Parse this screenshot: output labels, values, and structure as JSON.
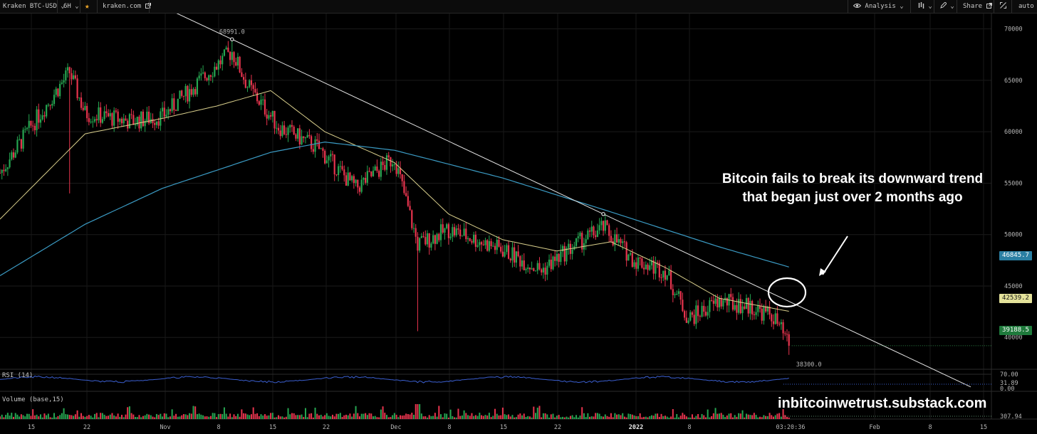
{
  "toolbar": {
    "symbol": "Kraken BTC-USD",
    "symbol_caret": "⌄",
    "interval": "6H",
    "interval_caret": "⌄",
    "source": "kraken.com",
    "analysis": "Analysis",
    "share": "Share",
    "scale": "auto",
    "icons": [
      "star-icon",
      "external-link-icon",
      "eye-icon",
      "bar-style-icon",
      "pencil-icon",
      "expand-icon"
    ]
  },
  "price_axis": [
    "70000",
    "65000",
    "60000",
    "55000",
    "50000",
    "45000",
    "40000"
  ],
  "price_badges": {
    "ma200": "46845.7",
    "ma50": "42539.2",
    "last": "39188.5"
  },
  "labels": {
    "high": "68991.0",
    "low": "38300.0",
    "countdown": "03:20:36"
  },
  "rsi": {
    "title": "RSI (14)",
    "levels": [
      "70.00",
      "31.89",
      "0.00"
    ]
  },
  "volume": {
    "title": "Volume (base,15)",
    "last": "307.94"
  },
  "time_axis": [
    {
      "t": "15"
    },
    {
      "t": "22"
    },
    {
      "t": "Nov"
    },
    {
      "t": "8"
    },
    {
      "t": "15"
    },
    {
      "t": "22"
    },
    {
      "t": "Dec"
    },
    {
      "t": "8"
    },
    {
      "t": "15"
    },
    {
      "t": "22"
    },
    {
      "t": "2022",
      "bold": true
    },
    {
      "t": "8"
    },
    {
      "t": "Feb"
    },
    {
      "t": "8"
    },
    {
      "t": "15"
    }
  ],
  "annotation": "Bitcoin fails to break its downward trend that began just over 2 months ago",
  "watermark": "inbitcoinwetrust.substack.com",
  "colors": {
    "up": "#26a651",
    "down": "#e8344e",
    "ma50": "#d9cf8c",
    "ma200": "#3b9bc4",
    "trendline": "#e6e6e6",
    "rsi": "#3b5fd0"
  },
  "chart_data": {
    "type": "candlestick",
    "symbol": "BTC-USD",
    "ylim": [
      36900,
      71500
    ],
    "key_points": {
      "high": 68991.0,
      "low": 38300.0,
      "last": 39188.5,
      "ma50_last": 42539.2,
      "ma200_last": 46845.7
    },
    "price_path": [
      {
        "x": "Oct 11",
        "close": 56000
      },
      {
        "x": "Oct 15",
        "close": 60500
      },
      {
        "x": "Oct 20",
        "close": 65800
      },
      {
        "x": "Oct 22",
        "close": 61800
      },
      {
        "x": "Oct 28",
        "close": 61000
      },
      {
        "x": "Nov 1",
        "close": 61500
      },
      {
        "x": "Nov 8",
        "close": 66500
      },
      {
        "x": "Nov 10",
        "close": 67800
      },
      {
        "x": "Nov 12",
        "close": 64500
      },
      {
        "x": "Nov 16",
        "close": 60500
      },
      {
        "x": "Nov 21",
        "close": 58500
      },
      {
        "x": "Nov 26",
        "close": 54500
      },
      {
        "x": "Dec 1",
        "close": 57500
      },
      {
        "x": "Dec 4",
        "close": 49000
      },
      {
        "x": "Dec 8",
        "close": 50500
      },
      {
        "x": "Dec 15",
        "close": 48500
      },
      {
        "x": "Dec 20",
        "close": 46500
      },
      {
        "x": "Dec 24",
        "close": 48800
      },
      {
        "x": "Dec 28",
        "close": 50700
      },
      {
        "x": "Jan 1",
        "close": 47500
      },
      {
        "x": "Jan 5",
        "close": 46500
      },
      {
        "x": "Jan 8",
        "close": 41800
      },
      {
        "x": "Jan 12",
        "close": 43500
      },
      {
        "x": "Jan 16",
        "close": 43000
      },
      {
        "x": "Jan 19",
        "close": 42000
      },
      {
        "x": "Jan 21",
        "close": 39200
      }
    ],
    "ma50_path": [
      {
        "x": "Oct 11",
        "y": 51500
      },
      {
        "x": "Oct 22",
        "y": 59800
      },
      {
        "x": "Nov 1",
        "y": 61300
      },
      {
        "x": "Nov 8",
        "y": 62500
      },
      {
        "x": "Nov 15",
        "y": 64000
      },
      {
        "x": "Nov 22",
        "y": 60000
      },
      {
        "x": "Dec 1",
        "y": 57000
      },
      {
        "x": "Dec 8",
        "y": 52000
      },
      {
        "x": "Dec 15",
        "y": 49500
      },
      {
        "x": "Dec 22",
        "y": 48400
      },
      {
        "x": "Dec 29",
        "y": 49300
      },
      {
        "x": "Jan 5",
        "y": 46800
      },
      {
        "x": "Jan 12",
        "y": 43800
      },
      {
        "x": "Jan 21",
        "y": 42539.2
      }
    ],
    "ma200_path": [
      {
        "x": "Oct 11",
        "y": 46000
      },
      {
        "x": "Oct 22",
        "y": 51000
      },
      {
        "x": "Nov 1",
        "y": 54500
      },
      {
        "x": "Nov 15",
        "y": 58000
      },
      {
        "x": "Nov 22",
        "y": 59000
      },
      {
        "x": "Dec 1",
        "y": 58200
      },
      {
        "x": "Dec 15",
        "y": 55500
      },
      {
        "x": "Dec 29",
        "y": 52200
      },
      {
        "x": "Jan 12",
        "y": 48800
      },
      {
        "x": "Jan 21",
        "y": 46845.7
      }
    ],
    "trendline": [
      {
        "x": "Nov 10",
        "y": 68991.0
      },
      {
        "x": "Dec 28",
        "y": 52000
      }
    ]
  }
}
